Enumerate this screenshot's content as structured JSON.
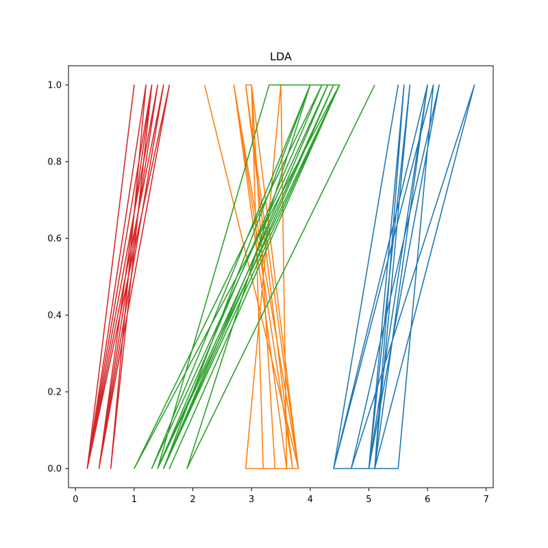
{
  "chart_data": {
    "type": "line",
    "title": "LDA",
    "xlabel": "",
    "ylabel": "",
    "xlim": [
      -0.12,
      7.12
    ],
    "ylim": [
      -0.05,
      1.05
    ],
    "xticks": [
      0,
      1,
      2,
      3,
      4,
      5,
      6,
      7
    ],
    "yticks": [
      0.0,
      0.2,
      0.4,
      0.6,
      0.8,
      1.0
    ],
    "ytick_labels": [
      "0.0",
      "0.2",
      "0.4",
      "0.6",
      "0.8",
      "1.0"
    ],
    "grid": false,
    "legend": "none",
    "series": [
      {
        "color": "#1f77b4",
        "x": [
          5.5,
          4.4,
          5.5,
          4.4,
          5.1,
          5.6,
          5.1,
          6.0,
          5.0,
          6.2,
          4.7,
          6.8,
          5.1,
          6.0,
          4.4,
          6.0,
          5.1,
          5.7,
          5.0,
          5.6,
          5.1,
          6.0,
          4.4,
          6.1,
          5.5
        ],
        "y": [
          0,
          0,
          1,
          0,
          0,
          1,
          0,
          1,
          0,
          1,
          0,
          1,
          0,
          1,
          0,
          1,
          0,
          1,
          0,
          1,
          0,
          1,
          0,
          1,
          0
        ]
      },
      {
        "color": "#ff7f0e",
        "x": [
          2.2,
          3.8,
          2.7,
          3.7,
          2.9,
          3.0,
          3.2,
          2.9,
          3.8,
          3.0,
          3.4,
          3.6,
          2.9,
          3.5,
          3.6,
          2.7,
          3.8,
          2.9
        ],
        "y": [
          1,
          0,
          1,
          0,
          1,
          1,
          0,
          0,
          0,
          1,
          0,
          0,
          0,
          1,
          0,
          1,
          0,
          1
        ]
      },
      {
        "color": "#2ca02c",
        "x": [
          5.1,
          1.9,
          4.0,
          1.3,
          4.3,
          1.5,
          4.5,
          1.6,
          4.5,
          1.4,
          4.4,
          1.5,
          4.5,
          1.4,
          4.2,
          1.0,
          4.5,
          1.5,
          4.5,
          1.4,
          3.3,
          4.5,
          1.5,
          4.4,
          1.5,
          4.0
        ],
        "y": [
          1,
          0,
          1,
          0,
          1,
          0,
          1,
          0,
          1,
          0,
          1,
          0,
          1,
          0,
          1,
          0,
          1,
          0,
          1,
          0,
          1,
          1,
          0,
          1,
          0,
          1
        ]
      },
      {
        "color": "#d62728",
        "x": [
          1.6,
          0.2,
          1.0,
          0.2,
          1.3,
          0.2,
          1.5,
          0.4,
          1.3,
          0.6,
          1.2,
          0.2,
          1.6,
          0.4,
          1.6,
          0.2,
          1.5,
          0.4,
          1.4,
          0.2,
          1.5,
          0.4,
          1.6
        ],
        "y": [
          1,
          0,
          1,
          0,
          1,
          0,
          1,
          0,
          1,
          0,
          1,
          0,
          1,
          0,
          1,
          0,
          1,
          0,
          1,
          0,
          1,
          0,
          1
        ]
      }
    ]
  }
}
